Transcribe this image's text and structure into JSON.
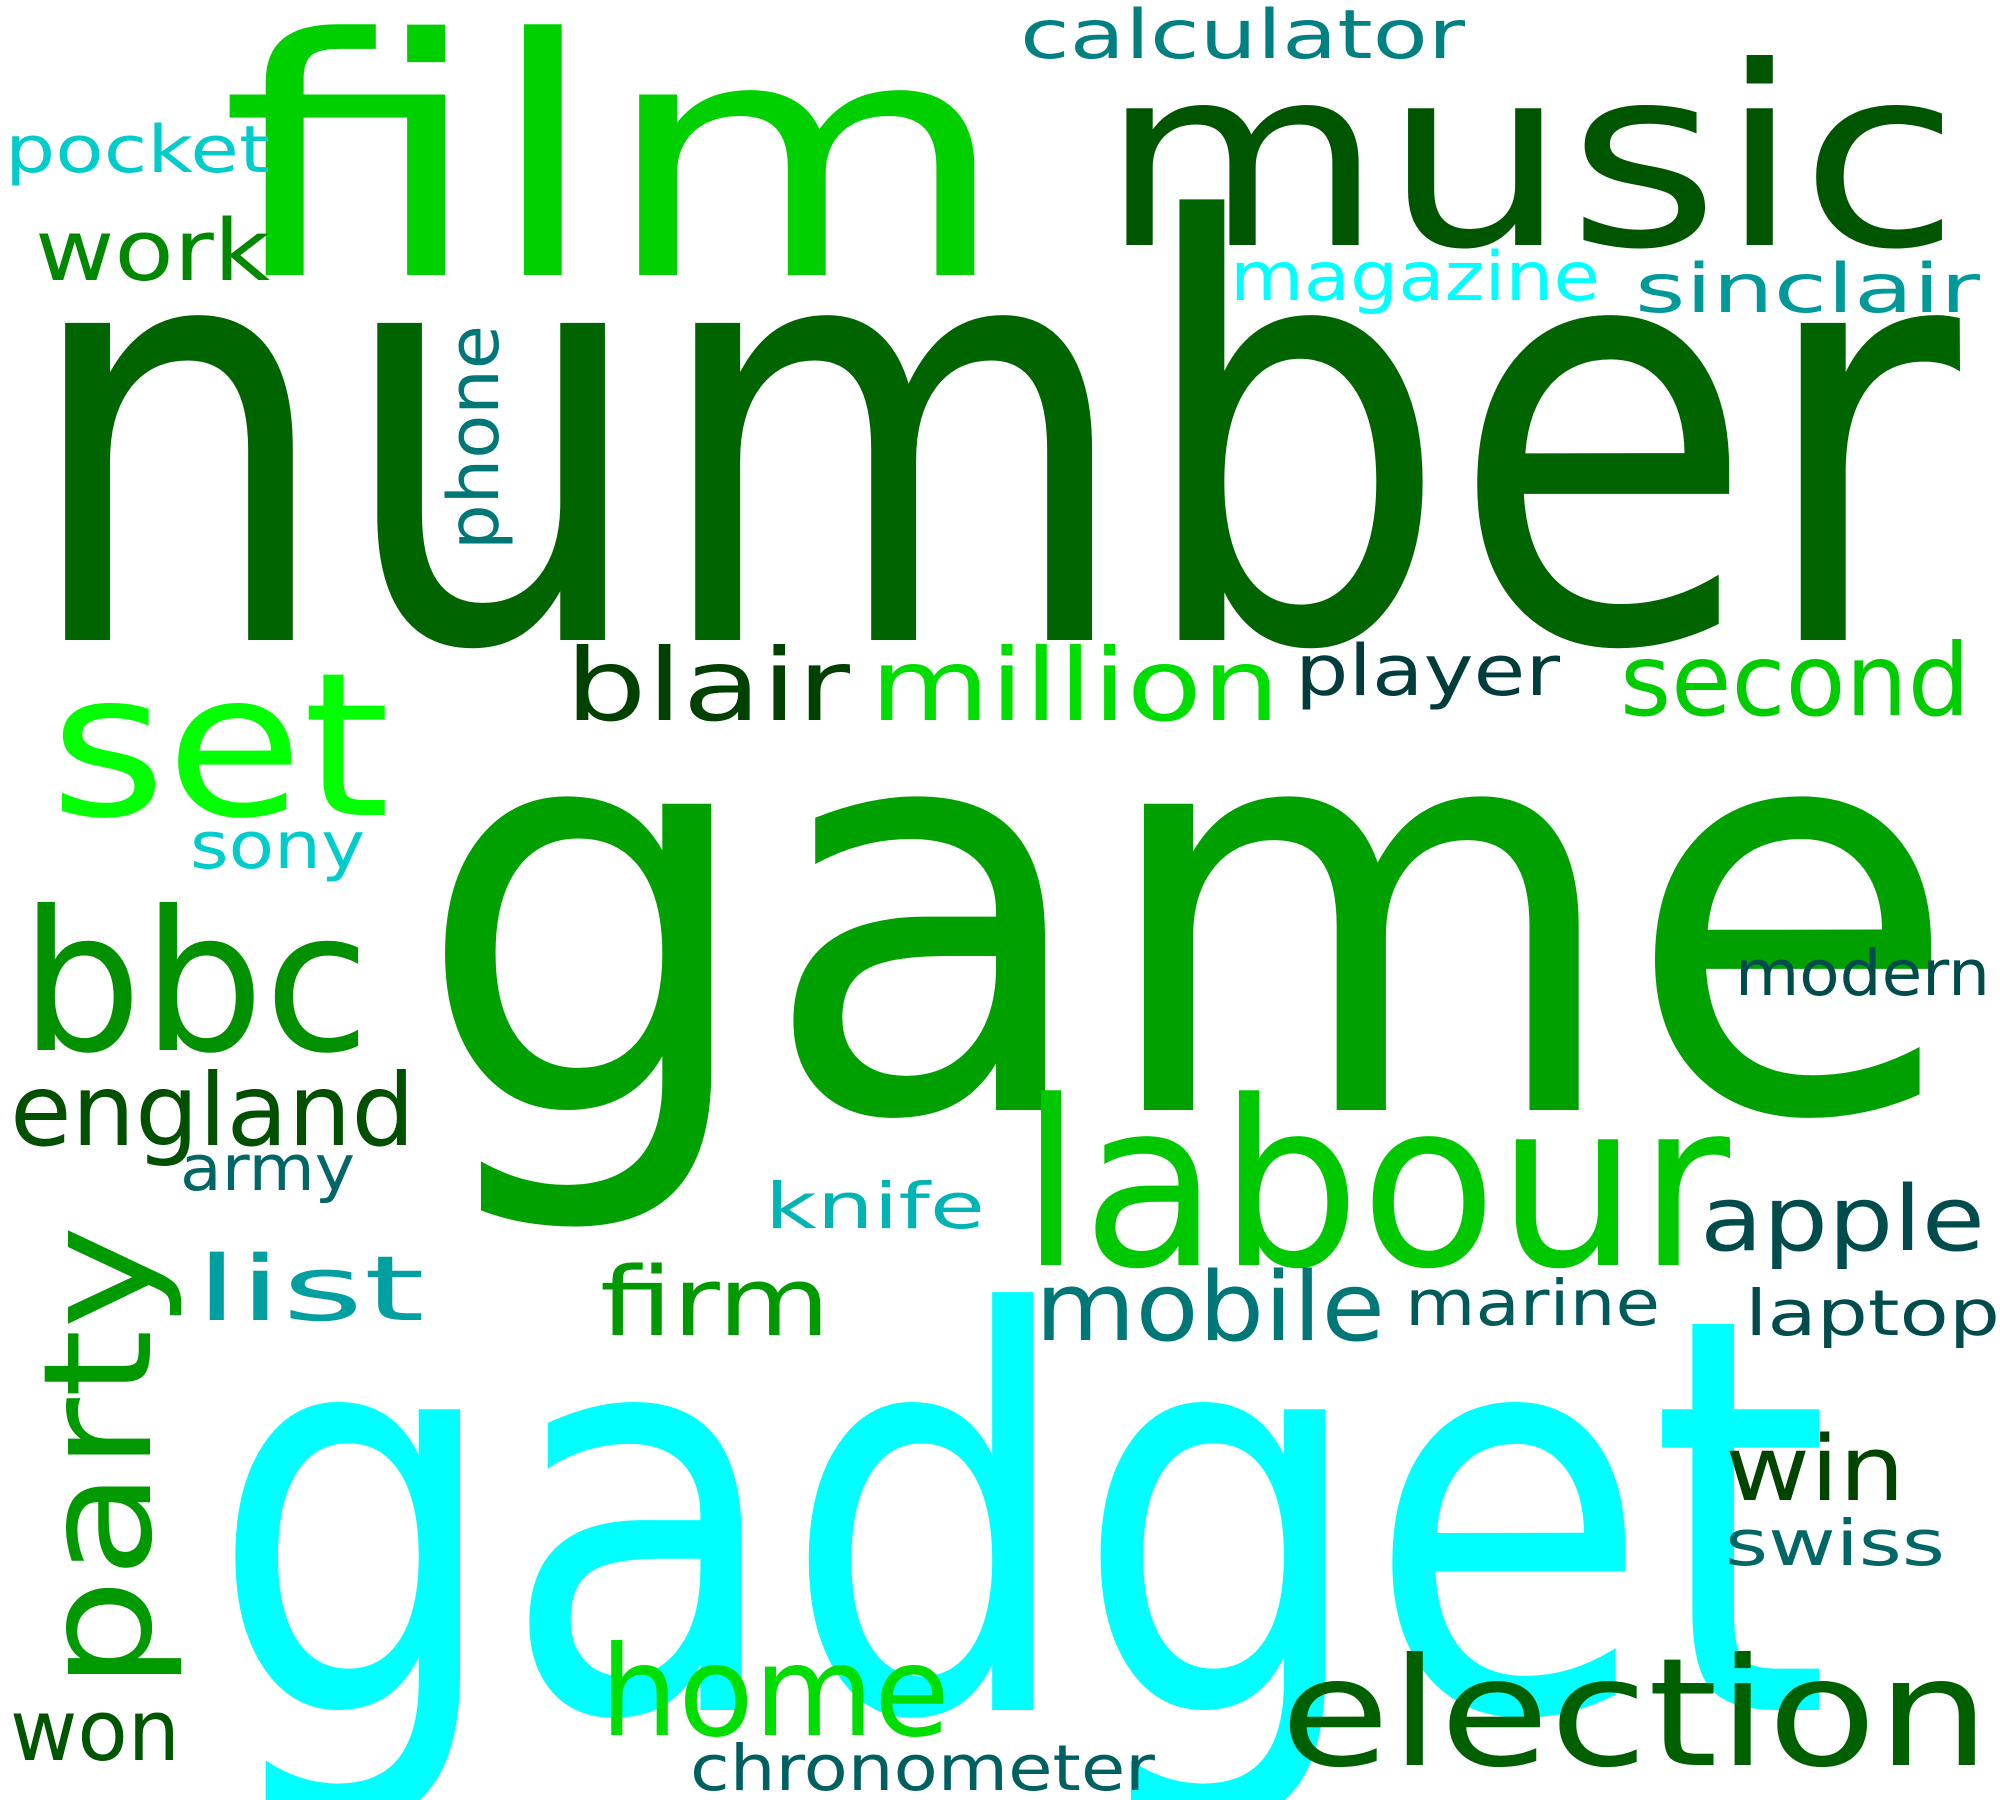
{
  "words": [
    {
      "text": "number",
      "color": "#006400"
    },
    {
      "text": "game",
      "color": "#00A000"
    },
    {
      "text": "gadget",
      "color": "#00FFFF"
    },
    {
      "text": "film",
      "color": "#00D000"
    },
    {
      "text": "music",
      "color": "#005500"
    },
    {
      "text": "labour",
      "color": "#00C800"
    },
    {
      "text": "set",
      "color": "#00FF00"
    },
    {
      "text": "bbc",
      "color": "#009000"
    },
    {
      "text": "party",
      "color": "#009900"
    },
    {
      "text": "election",
      "color": "#006000"
    },
    {
      "text": "home",
      "color": "#00DD00"
    },
    {
      "text": "million",
      "color": "#00DD00"
    },
    {
      "text": "second",
      "color": "#00CC00"
    },
    {
      "text": "blair",
      "color": "#004000"
    },
    {
      "text": "england",
      "color": "#005000"
    },
    {
      "text": "work",
      "color": "#008800"
    },
    {
      "text": "firm",
      "color": "#009900"
    },
    {
      "text": "mobile",
      "color": "#007777"
    },
    {
      "text": "apple",
      "color": "#004C4C"
    },
    {
      "text": "win",
      "color": "#004400"
    },
    {
      "text": "won",
      "color": "#005500"
    },
    {
      "text": "list",
      "color": "#00A0A0"
    },
    {
      "text": "player",
      "color": "#003C3C"
    },
    {
      "text": "phone",
      "color": "#007777"
    },
    {
      "text": "calculator",
      "color": "#008080"
    },
    {
      "text": "magazine",
      "color": "#00FFFF"
    },
    {
      "text": "sinclair",
      "color": "#009999"
    },
    {
      "text": "pocket",
      "color": "#00CCCC"
    },
    {
      "text": "sony",
      "color": "#00CCCC"
    },
    {
      "text": "knife",
      "color": "#00B4B4"
    },
    {
      "text": "army",
      "color": "#006666"
    },
    {
      "text": "modern",
      "color": "#004C4C"
    },
    {
      "text": "laptop",
      "color": "#004C4C"
    },
    {
      "text": "marine",
      "color": "#005A5A"
    },
    {
      "text": "swiss",
      "color": "#006666"
    },
    {
      "text": "chronometer",
      "color": "#006060"
    }
  ]
}
